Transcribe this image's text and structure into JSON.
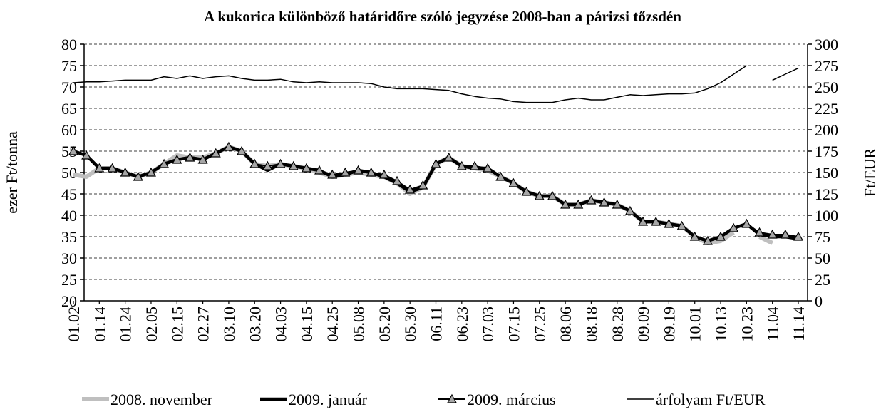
{
  "chart_data": {
    "type": "line",
    "title": "A kukorica különböző határidőre szóló jegyzése 2008-ban a párizsi tőzsdén",
    "y_label": "ezer Ft/tonna",
    "y2_label": "Ft/EUR",
    "categories": [
      "01.02",
      null,
      "01.14",
      null,
      "01.24",
      null,
      "02.05",
      null,
      "02.15",
      null,
      "02.27",
      null,
      "03.10",
      null,
      "03.20",
      null,
      "04.03",
      null,
      "04.15",
      null,
      "04.25",
      null,
      "05.08",
      null,
      "05.20",
      null,
      "05.30",
      null,
      "06.11",
      null,
      "06.23",
      null,
      "07.03",
      null,
      "07.15",
      null,
      "07.25",
      null,
      "08.06",
      null,
      "08.18",
      null,
      "08.28",
      null,
      "09.09",
      null,
      "09.19",
      null,
      "10.01",
      null,
      "10.13",
      null,
      "10.23",
      null,
      "11.04",
      null,
      "11.14"
    ],
    "ylim": [
      20,
      80
    ],
    "yticks": [
      20,
      25,
      30,
      35,
      40,
      45,
      50,
      55,
      60,
      65,
      70,
      75,
      80
    ],
    "y2lim": [
      0,
      300
    ],
    "y2ticks": [
      0,
      25,
      50,
      75,
      100,
      125,
      150,
      175,
      200,
      225,
      250,
      275,
      300
    ],
    "grid": true,
    "legend": "bottom",
    "series": [
      {
        "name": "2008. november",
        "color": "#bfbfbf",
        "values": [
          49.5,
          49,
          51,
          51,
          50,
          49,
          50,
          52,
          54,
          53.5,
          53.5,
          54.5,
          56,
          55,
          52,
          51.5,
          52,
          51.5,
          51,
          50,
          49,
          49.5,
          50,
          49.5,
          49,
          47.5,
          45,
          46.5,
          52,
          53.5,
          51.5,
          51,
          50.5,
          49,
          47.5,
          45.5,
          44.5,
          44.5,
          42.5,
          42.5,
          43.5,
          43,
          42.5,
          41,
          38.5,
          38.5,
          38,
          37.5,
          35,
          33.5,
          34,
          36,
          null,
          35,
          33.5,
          null,
          null
        ]
      },
      {
        "name": "2009. január",
        "color": "#000000",
        "values": [
          55,
          54,
          51,
          51,
          50,
          49,
          50,
          52,
          53,
          53.5,
          53,
          54.5,
          56,
          55,
          52,
          50.5,
          52,
          51.5,
          51,
          50.5,
          49,
          49.5,
          50.5,
          50,
          49,
          47.5,
          45.5,
          46.5,
          52,
          53.5,
          51.5,
          51,
          51,
          49,
          47.5,
          45.5,
          44.5,
          44.5,
          42.5,
          42.5,
          43.5,
          43,
          42.5,
          41,
          38.5,
          38.5,
          38,
          37.5,
          35,
          34,
          35,
          37,
          38,
          35.5,
          35,
          35,
          34.5
        ]
      },
      {
        "name": "2009. március",
        "color": "#000000",
        "marker_color": "#a6a6a6",
        "values": [
          55,
          54,
          51,
          51,
          50,
          49,
          50,
          52,
          53,
          53.5,
          53,
          54.5,
          56,
          55,
          52,
          51.5,
          52,
          51.5,
          51,
          50.5,
          49.5,
          50,
          50.5,
          50,
          49.5,
          48,
          46,
          47,
          52,
          53.5,
          51.5,
          51.5,
          51,
          49,
          47.5,
          45.5,
          44.5,
          44.5,
          42.5,
          42.5,
          43.5,
          43,
          42.5,
          41,
          38.5,
          38.5,
          38,
          37.5,
          35,
          34,
          35,
          37,
          38,
          36,
          35.5,
          35.5,
          35
        ]
      },
      {
        "name": "árfolyam Ft/EUR",
        "color": "#000000",
        "axis": "y2",
        "values": [
          255,
          256,
          256,
          257,
          258,
          258,
          258,
          262,
          260,
          263,
          260,
          262,
          263,
          260,
          258,
          258,
          259,
          256,
          255,
          256,
          255,
          255,
          255,
          254,
          250,
          248,
          248,
          248,
          247,
          246,
          242,
          239,
          237,
          236,
          233,
          232,
          232,
          232,
          235,
          237,
          235,
          235,
          238,
          241,
          240,
          241,
          242,
          242,
          243,
          248,
          255,
          265,
          275,
          null,
          258,
          265,
          272
        ]
      }
    ]
  }
}
